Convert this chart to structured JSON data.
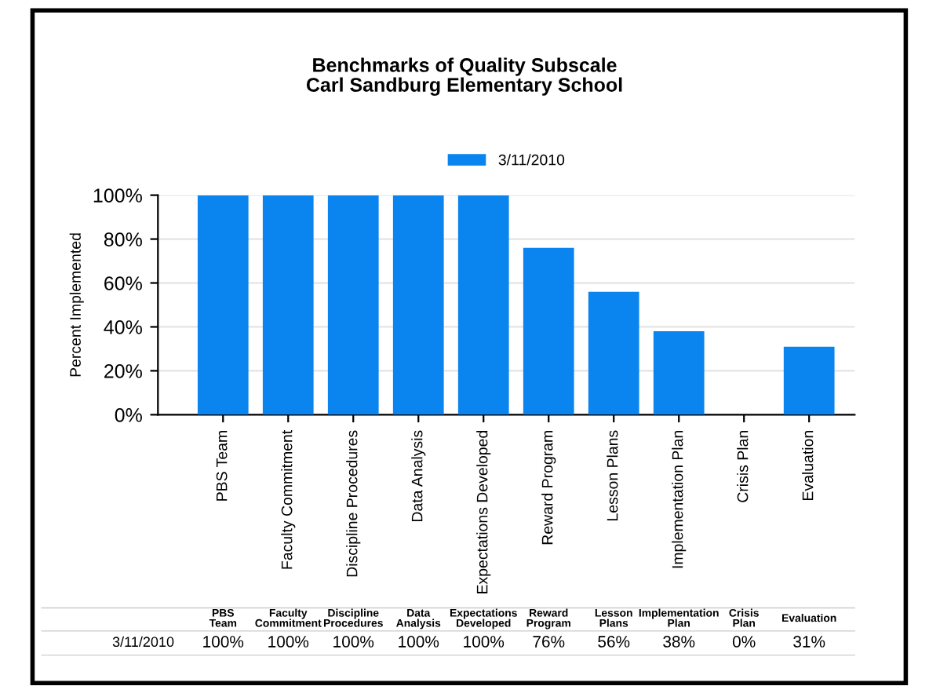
{
  "chart_data": {
    "type": "bar",
    "title": "Benchmarks of Quality Subscale\nCarl Sandburg Elementary School",
    "ylabel": "Percent Implemented",
    "categories": [
      "PBS Team",
      "Faculty Commitment",
      "Discipline Procedures",
      "Data Analysis",
      "Expectations Developed",
      "Reward Program",
      "Lesson Plans",
      "Implementation Plan",
      "Crisis Plan",
      "Evaluation"
    ],
    "series": [
      {
        "name": "3/11/2010",
        "color": "#0a84ee",
        "values": [
          100,
          100,
          100,
          100,
          100,
          76,
          56,
          38,
          0,
          31
        ],
        "value_labels": [
          "100%",
          "100%",
          "100%",
          "100%",
          "100%",
          "76%",
          "56%",
          "38%",
          "0%",
          "31%"
        ]
      }
    ],
    "ylim": [
      0,
      100
    ],
    "yticks": [
      {
        "value": 0,
        "label": "0%"
      },
      {
        "value": 20,
        "label": "20%"
      },
      {
        "value": 40,
        "label": "40%"
      },
      {
        "value": 60,
        "label": "60%"
      },
      {
        "value": 80,
        "label": "80%"
      },
      {
        "value": 100,
        "label": "100%"
      }
    ],
    "grid": "y",
    "legend": "top"
  }
}
